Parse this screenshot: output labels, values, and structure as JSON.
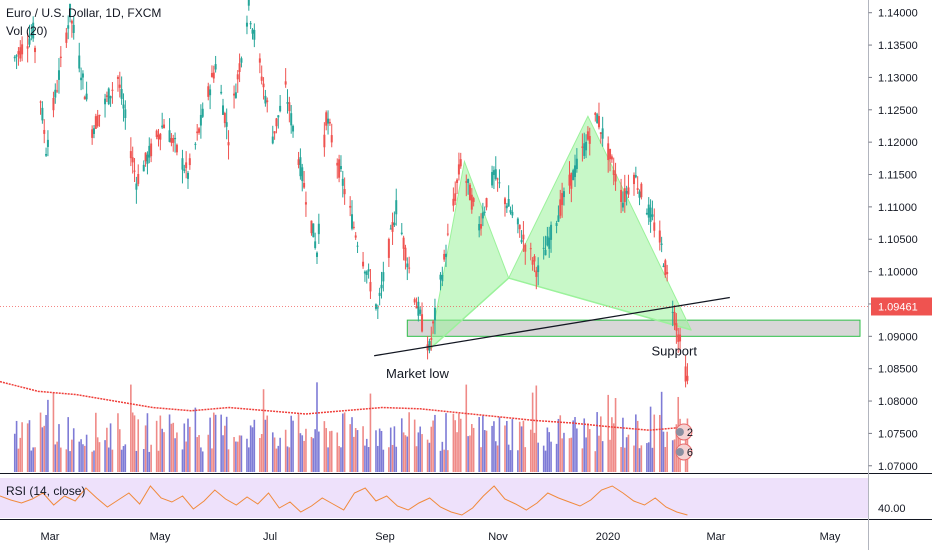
{
  "header": {
    "symbol": "Euro / U.S. Dollar, 1D, FXCM",
    "volume_label": "Vol (20)",
    "rsi_label": "RSI (14, close)"
  },
  "colors": {
    "up": "#26a69a",
    "down": "#ef5350",
    "volume_up": "#7e7bd6",
    "volume_down": "#ef8a87",
    "volume_ma": "#ef3f3a",
    "pattern_fill": "#9bf29b",
    "zone_fill": "#c9c9c9",
    "zone_border": "#2fbf4a",
    "rsi_band": "#eee1fb",
    "rsi_line": "#f08a3c",
    "price_tag": "#ef5350",
    "trendline": "#131722"
  },
  "chart_data": {
    "type": "candlestick",
    "title": "Euro / U.S. Dollar, 1D, FXCM",
    "y_axis_ticks": [
      "1.14000",
      "1.13500",
      "1.13000",
      "1.12500",
      "1.12000",
      "1.11500",
      "1.11000",
      "1.10500",
      "1.10000",
      "1.09500",
      "1.09000",
      "1.08500",
      "1.08000",
      "1.07500",
      "1.07000"
    ],
    "ylim": [
      1.0695,
      1.1415
    ],
    "x_axis_ticks": [
      "Mar",
      "May",
      "Jul",
      "Sep",
      "Nov",
      "2020",
      "Mar",
      "May"
    ],
    "last_price": "1.09461",
    "price_path": [
      [
        "2019-02-18",
        1.133
      ],
      [
        "2019-02-28",
        1.137
      ],
      [
        "2019-03-07",
        1.119
      ],
      [
        "2019-03-20",
        1.14
      ],
      [
        "2019-04-01",
        1.122
      ],
      [
        "2019-04-15",
        1.13
      ],
      [
        "2019-04-25",
        1.114
      ],
      [
        "2019-05-10",
        1.123
      ],
      [
        "2019-05-23",
        1.115
      ],
      [
        "2019-06-07",
        1.132
      ],
      [
        "2019-06-14",
        1.121
      ],
      [
        "2019-06-25",
        1.141
      ],
      [
        "2019-07-08",
        1.121
      ],
      [
        "2019-07-15",
        1.128
      ],
      [
        "2019-08-01",
        1.103
      ],
      [
        "2019-08-06",
        1.124
      ],
      [
        "2019-08-20",
        1.108
      ],
      [
        "2019-09-03",
        1.094
      ],
      [
        "2019-09-13",
        1.11
      ],
      [
        "2019-09-24",
        1.095
      ],
      [
        "2019-10-01",
        1.088
      ],
      [
        "2019-10-18",
        1.117
      ],
      [
        "2019-10-28",
        1.107
      ],
      [
        "2019-11-05",
        1.115
      ],
      [
        "2019-11-29",
        1.1
      ],
      [
        "2019-12-11",
        1.11
      ],
      [
        "2019-12-31",
        1.124
      ],
      [
        "2020-01-14",
        1.111
      ],
      [
        "2020-01-20",
        1.115
      ],
      [
        "2020-02-03",
        1.105
      ],
      [
        "2020-02-18",
        1.083
      ]
    ],
    "volume_ma": [
      1.083,
      1.0815,
      1.081,
      1.08,
      1.079,
      1.0785,
      1.079,
      1.0785,
      1.078,
      1.0785,
      1.079,
      1.0788,
      1.0782,
      1.0776,
      1.077,
      1.0766,
      1.076,
      1.0755,
      1.076
    ],
    "rsi_ticks": [
      "40.00"
    ],
    "rsi_series": [
      52,
      48,
      45,
      49,
      55,
      43,
      52,
      47,
      60,
      50,
      41,
      48,
      55,
      44,
      62,
      50,
      46,
      52,
      39,
      47,
      58,
      49,
      43,
      51,
      44,
      55,
      40,
      46,
      36,
      42,
      50,
      44,
      38,
      55,
      60,
      47,
      52,
      42,
      38,
      45,
      50,
      41,
      36,
      33,
      40,
      52,
      62,
      49,
      44,
      38,
      45,
      55,
      50,
      46,
      42,
      48,
      58,
      62,
      55,
      47,
      43,
      50,
      41,
      36,
      33
    ],
    "pattern": {
      "name": "harmonic pattern",
      "points": [
        [
          "2019-10-01",
          1.088
        ],
        [
          "2019-10-20",
          1.117
        ],
        [
          "2019-11-13",
          1.099
        ],
        [
          "2019-12-26",
          1.124
        ],
        [
          "2020-02-20",
          1.091
        ]
      ]
    },
    "support_zone": [
      1.09,
      1.0925
    ],
    "trendline": [
      [
        "2019-09-01",
        1.087
      ],
      [
        "2020-03-12",
        1.096
      ]
    ],
    "annotations": [
      {
        "label": "Market low",
        "date": "2019-09-27",
        "price": 1.086
      },
      {
        "label": "Support",
        "date": "2020-02-18",
        "price": 1.0895
      }
    ],
    "volume_markers": [
      "2",
      "6"
    ]
  }
}
